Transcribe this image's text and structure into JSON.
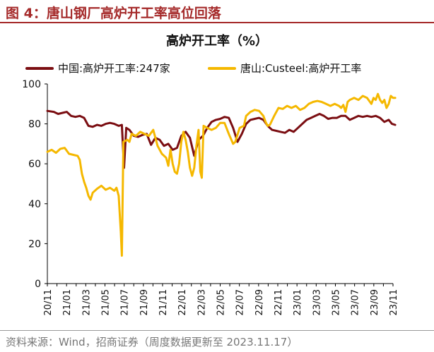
{
  "figure": {
    "label": "图 4：唐山钢厂高炉开工率高位回落",
    "source": "资料来源：Wind，招商证券（周度数据更新至 2023.11.17）"
  },
  "colors": {
    "header_accent": "#a52a2a",
    "series_china": "#7b0e12",
    "series_tangshan": "#f5b800"
  },
  "chart_data": {
    "type": "line",
    "title": "高炉开工率（%）",
    "ylim": [
      0,
      100
    ],
    "yticks": [
      0,
      20,
      40,
      60,
      80,
      100
    ],
    "xlim": [
      0,
      160
    ],
    "x_tick_labels": [
      "20/11",
      "21/01",
      "21/03",
      "21/05",
      "21/07",
      "21/09",
      "21/11",
      "22/01",
      "22/03",
      "22/05",
      "22/07",
      "22/09",
      "22/11",
      "23/01",
      "23/03",
      "23/05",
      "23/07",
      "23/09",
      "23/11"
    ],
    "grid": false,
    "legend": "top",
    "series": [
      {
        "name": "中国:高炉开工率:247家",
        "color": "#7b0e12",
        "points": [
          [
            0,
            86.5
          ],
          [
            3,
            86
          ],
          [
            5,
            85
          ],
          [
            7,
            85.5
          ],
          [
            9,
            86
          ],
          [
            11,
            84
          ],
          [
            13,
            83.5
          ],
          [
            15,
            84
          ],
          [
            17,
            83
          ],
          [
            19,
            79
          ],
          [
            21,
            78.5
          ],
          [
            23,
            79.5
          ],
          [
            25,
            79
          ],
          [
            27,
            80
          ],
          [
            29,
            80.5
          ],
          [
            31,
            80
          ],
          [
            33,
            79
          ],
          [
            34.5,
            79.5
          ],
          [
            35.5,
            58
          ],
          [
            36.5,
            78
          ],
          [
            38,
            77
          ],
          [
            40,
            74
          ],
          [
            42,
            73.5
          ],
          [
            44,
            74.5
          ],
          [
            46,
            75
          ],
          [
            48,
            69.5
          ],
          [
            50,
            73
          ],
          [
            52,
            72
          ],
          [
            54,
            69
          ],
          [
            56,
            70
          ],
          [
            58,
            67
          ],
          [
            60,
            68
          ],
          [
            62,
            74
          ],
          [
            64,
            76
          ],
          [
            66,
            73
          ],
          [
            68,
            64
          ],
          [
            70,
            72
          ],
          [
            72,
            74
          ],
          [
            74,
            78
          ],
          [
            76,
            81
          ],
          [
            78,
            82
          ],
          [
            80,
            82.5
          ],
          [
            82,
            83.5
          ],
          [
            84,
            83
          ],
          [
            86,
            78
          ],
          [
            88,
            71
          ],
          [
            90,
            75
          ],
          [
            92,
            80
          ],
          [
            94,
            82
          ],
          [
            96,
            82.5
          ],
          [
            98,
            83
          ],
          [
            100,
            82
          ],
          [
            102,
            79
          ],
          [
            104,
            77
          ],
          [
            106,
            76.5
          ],
          [
            108,
            76
          ],
          [
            110,
            75.5
          ],
          [
            112,
            77
          ],
          [
            114,
            76
          ],
          [
            116,
            78
          ],
          [
            118,
            80
          ],
          [
            120,
            82
          ],
          [
            122,
            83
          ],
          [
            124,
            84
          ],
          [
            126,
            85
          ],
          [
            128,
            84
          ],
          [
            130,
            82.5
          ],
          [
            132,
            83
          ],
          [
            134,
            83
          ],
          [
            136,
            84
          ],
          [
            138,
            84
          ],
          [
            140,
            82
          ],
          [
            142,
            83
          ],
          [
            144,
            84
          ],
          [
            146,
            83.5
          ],
          [
            148,
            84
          ],
          [
            150,
            83.5
          ],
          [
            152,
            84
          ],
          [
            154,
            83
          ],
          [
            156,
            81
          ],
          [
            158,
            82
          ],
          [
            159.5,
            80
          ],
          [
            161,
            79.5
          ]
        ]
      },
      {
        "name": "唐山:Custeel:高炉开工率",
        "color": "#f5b800",
        "points": [
          [
            0,
            66
          ],
          [
            2,
            67
          ],
          [
            4,
            65.5
          ],
          [
            6,
            67.5
          ],
          [
            8,
            68
          ],
          [
            10,
            65
          ],
          [
            12,
            64.5
          ],
          [
            14,
            64
          ],
          [
            15,
            62
          ],
          [
            16,
            55
          ],
          [
            17,
            51
          ],
          [
            18,
            48
          ],
          [
            19,
            44
          ],
          [
            20,
            42
          ],
          [
            21,
            45.5
          ],
          [
            23,
            47.5
          ],
          [
            25,
            49
          ],
          [
            27,
            47
          ],
          [
            29,
            48
          ],
          [
            31,
            46.5
          ],
          [
            32,
            48
          ],
          [
            33,
            44
          ],
          [
            34,
            26
          ],
          [
            34.5,
            14
          ],
          [
            35.2,
            71
          ],
          [
            37,
            72
          ],
          [
            38,
            71
          ],
          [
            39,
            75
          ],
          [
            41,
            74
          ],
          [
            43,
            76
          ],
          [
            45,
            75
          ],
          [
            47,
            74
          ],
          [
            49,
            77
          ],
          [
            51,
            69
          ],
          [
            53,
            65
          ],
          [
            55,
            63
          ],
          [
            56,
            59
          ],
          [
            57,
            67
          ],
          [
            58,
            60
          ],
          [
            59,
            56
          ],
          [
            60,
            55
          ],
          [
            61,
            60
          ],
          [
            62,
            71
          ],
          [
            63,
            76
          ],
          [
            64,
            72
          ],
          [
            65,
            66
          ],
          [
            66,
            58
          ],
          [
            67,
            54
          ],
          [
            68,
            58
          ],
          [
            69,
            69
          ],
          [
            70,
            77
          ],
          [
            70.8,
            56
          ],
          [
            71.5,
            53
          ],
          [
            72.3,
            79
          ],
          [
            74,
            78
          ],
          [
            76,
            77
          ],
          [
            78,
            78
          ],
          [
            80,
            80.5
          ],
          [
            82,
            80.5
          ],
          [
            84,
            75
          ],
          [
            86,
            70
          ],
          [
            87,
            71
          ],
          [
            89,
            78
          ],
          [
            91,
            79
          ],
          [
            92,
            84
          ],
          [
            94,
            86
          ],
          [
            96,
            87
          ],
          [
            98,
            86.5
          ],
          [
            100,
            84
          ],
          [
            101,
            81
          ],
          [
            102,
            79
          ],
          [
            103,
            79.5
          ],
          [
            105,
            84
          ],
          [
            107,
            88
          ],
          [
            109,
            87.5
          ],
          [
            111,
            89
          ],
          [
            113,
            88
          ],
          [
            115,
            89
          ],
          [
            117,
            87
          ],
          [
            119,
            88
          ],
          [
            121,
            90
          ],
          [
            123,
            91
          ],
          [
            125,
            91.5
          ],
          [
            127,
            91
          ],
          [
            129,
            90
          ],
          [
            131,
            89
          ],
          [
            133,
            90
          ],
          [
            135,
            89
          ],
          [
            136,
            88
          ],
          [
            137,
            89.5
          ],
          [
            138,
            86
          ],
          [
            139,
            91
          ],
          [
            140,
            92
          ],
          [
            142,
            93
          ],
          [
            144,
            92
          ],
          [
            146,
            94
          ],
          [
            148,
            93
          ],
          [
            150,
            90
          ],
          [
            151,
            93
          ],
          [
            152,
            92
          ],
          [
            153,
            95
          ],
          [
            154,
            92
          ],
          [
            155,
            90.5
          ],
          [
            156,
            92
          ],
          [
            157,
            88
          ],
          [
            158,
            90
          ],
          [
            159,
            94
          ],
          [
            160,
            93
          ],
          [
            161,
            93
          ]
        ]
      }
    ]
  }
}
